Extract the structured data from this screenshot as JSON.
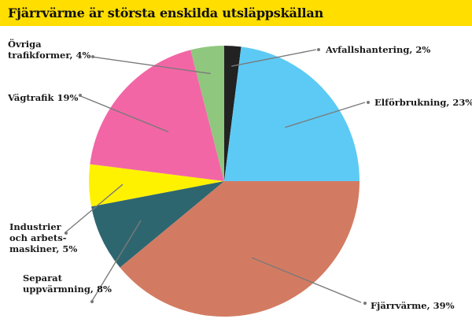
{
  "title": "Fjärrvärme är största enskilda utsläppskällan",
  "colors": {
    "title_bar": "#ffde00",
    "leader": "#7a7a7a",
    "dot": "#777777"
  },
  "chart_data": {
    "type": "pie",
    "title": "Fjärrvärme är största enskilda utsläppskällan",
    "start_angle_deg": 0,
    "direction": "clockwise",
    "slices": [
      {
        "label": [
          "Avfallshantering, 2%"
        ],
        "value": 2,
        "color": "#222222"
      },
      {
        "label": [
          "Elförbrukning, 23%"
        ],
        "value": 23,
        "color": "#5ccaf5"
      },
      {
        "label": [
          "Fjärrvärme, 39%"
        ],
        "value": 39,
        "color": "#d37b62"
      },
      {
        "label": [
          "Separat",
          "uppvärmning, 8%"
        ],
        "value": 8,
        "color": "#2e6670"
      },
      {
        "label": [
          "Industrier",
          "och arbets-",
          "maskiner, 5%"
        ],
        "value": 5,
        "color": "#fff200"
      },
      {
        "label": [
          "Vägtrafik 19%"
        ],
        "value": 19,
        "color": "#f266a6"
      },
      {
        "label": [
          "Övriga",
          "trafikformer, 4%"
        ],
        "value": 4,
        "color": "#8fc77e"
      }
    ]
  }
}
